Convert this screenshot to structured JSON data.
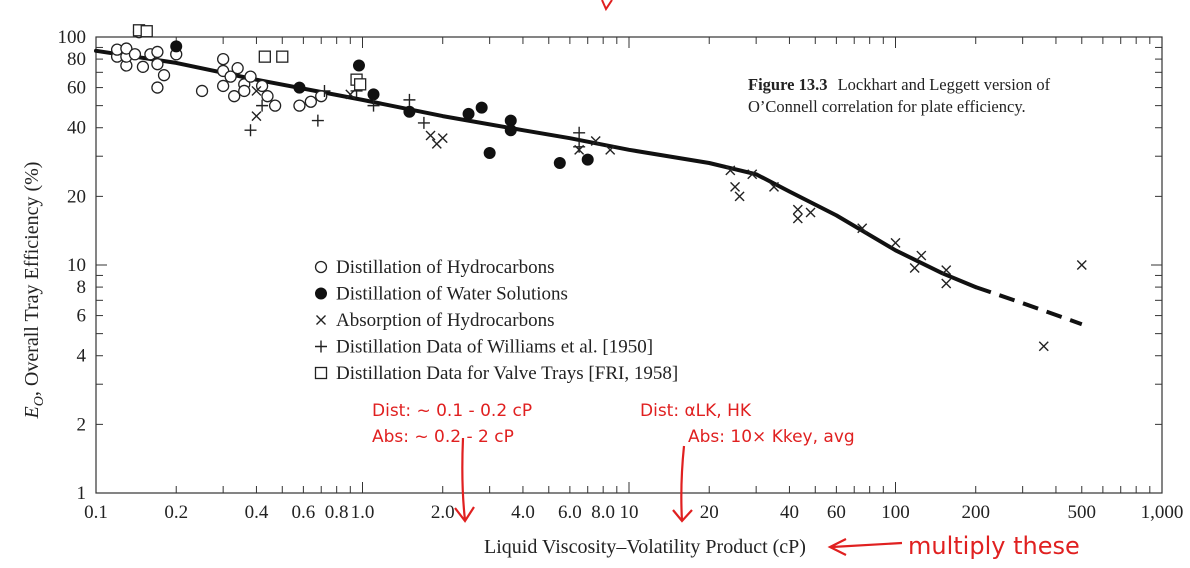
{
  "chart_data": {
    "type": "scatter",
    "title": "",
    "xlabel": "Liquid Viscosity–Volatility Product (cP)",
    "ylabel_prefix": "E",
    "ylabel_sub": "O",
    "ylabel_rest": ", Overall Tray Efficiency (%)",
    "xscale": "log",
    "yscale": "log",
    "xlim": [
      0.1,
      1000
    ],
    "ylim": [
      1,
      100
    ],
    "x_tick_labels": [
      {
        "value": 0.1,
        "label": "0.1"
      },
      {
        "value": 0.2,
        "label": "0.2"
      },
      {
        "value": 0.4,
        "label": "0.4"
      },
      {
        "value": 0.6,
        "label": "0.6"
      },
      {
        "value": 0.8,
        "label": "0.8"
      },
      {
        "value": 1.0,
        "label": "1.0"
      },
      {
        "value": 2.0,
        "label": "2.0"
      },
      {
        "value": 4.0,
        "label": "4.0"
      },
      {
        "value": 6.0,
        "label": "6.0"
      },
      {
        "value": 8.0,
        "label": "8.0"
      },
      {
        "value": 10,
        "label": "10"
      },
      {
        "value": 20,
        "label": "20"
      },
      {
        "value": 40,
        "label": "40"
      },
      {
        "value": 60,
        "label": "60"
      },
      {
        "value": 100,
        "label": "100"
      },
      {
        "value": 200,
        "label": "200"
      },
      {
        "value": 500,
        "label": "500"
      },
      {
        "value": 1000,
        "label": "1,000"
      }
    ],
    "y_tick_labels": [
      {
        "value": 1,
        "label": "1"
      },
      {
        "value": 2,
        "label": "2"
      },
      {
        "value": 4,
        "label": "4"
      },
      {
        "value": 6,
        "label": "6"
      },
      {
        "value": 8,
        "label": "8"
      },
      {
        "value": 10,
        "label": "10"
      },
      {
        "value": 20,
        "label": "20"
      },
      {
        "value": 40,
        "label": "40"
      },
      {
        "value": 60,
        "label": "60"
      },
      {
        "value": 80,
        "label": "80"
      },
      {
        "value": 100,
        "label": "100"
      }
    ],
    "caption_bold": "Figure 13.3",
    "caption_line1": "Lockhart and Leggett version of",
    "caption_line2": "O’Connell correlation for plate efficiency.",
    "legend_placement": "lower-center",
    "legend": [
      {
        "marker": "open-circle",
        "label": "Distillation of Hydrocarbons"
      },
      {
        "marker": "filled-circle",
        "label": "Distillation of Water Solutions"
      },
      {
        "marker": "x",
        "label": "Absorption of Hydrocarbons"
      },
      {
        "marker": "plus",
        "label": "Distillation Data of Williams et al. [1950]"
      },
      {
        "marker": "open-square",
        "label": "Distillation Data for Valve Trays [FRI, 1958]"
      }
    ],
    "correlation_curve": {
      "solid": [
        [
          0.1,
          87
        ],
        [
          0.2,
          77
        ],
        [
          0.4,
          65
        ],
        [
          1.0,
          53
        ],
        [
          2.0,
          45
        ],
        [
          4.0,
          39
        ],
        [
          6.0,
          36
        ],
        [
          10,
          32
        ],
        [
          20,
          28
        ],
        [
          30,
          25
        ],
        [
          40,
          21
        ],
        [
          60,
          16.5
        ],
        [
          100,
          11.6
        ],
        [
          150,
          9.2
        ],
        [
          200,
          8.0
        ]
      ],
      "dashed": [
        [
          200,
          8.0
        ],
        [
          300,
          6.8
        ],
        [
          500,
          5.5
        ]
      ]
    },
    "series": [
      {
        "marker": "open-circle",
        "points": [
          [
            0.12,
            82
          ],
          [
            0.12,
            88
          ],
          [
            0.13,
            75
          ],
          [
            0.13,
            82
          ],
          [
            0.13,
            89
          ],
          [
            0.14,
            84
          ],
          [
            0.145,
            105
          ],
          [
            0.15,
            74
          ],
          [
            0.16,
            84
          ],
          [
            0.17,
            76
          ],
          [
            0.17,
            60
          ],
          [
            0.17,
            86
          ],
          [
            0.18,
            68
          ],
          [
            0.2,
            84
          ],
          [
            0.25,
            58
          ],
          [
            0.3,
            80
          ],
          [
            0.3,
            71
          ],
          [
            0.3,
            61
          ],
          [
            0.32,
            67
          ],
          [
            0.33,
            55
          ],
          [
            0.34,
            73
          ],
          [
            0.36,
            62
          ],
          [
            0.36,
            58
          ],
          [
            0.38,
            67
          ],
          [
            0.42,
            61
          ],
          [
            0.44,
            55
          ],
          [
            0.47,
            50
          ],
          [
            0.58,
            50
          ],
          [
            0.64,
            52
          ],
          [
            0.7,
            55
          ]
        ]
      },
      {
        "marker": "filled-circle",
        "points": [
          [
            0.2,
            91
          ],
          [
            0.58,
            60
          ],
          [
            0.97,
            75
          ],
          [
            1.1,
            56
          ],
          [
            1.5,
            47
          ],
          [
            2.5,
            46
          ],
          [
            2.8,
            49
          ],
          [
            3.0,
            31
          ],
          [
            3.6,
            43
          ],
          [
            3.6,
            39
          ],
          [
            5.5,
            28
          ],
          [
            7.0,
            29
          ]
        ]
      },
      {
        "marker": "x",
        "points": [
          [
            0.4,
            58
          ],
          [
            0.4,
            45
          ],
          [
            0.9,
            56
          ],
          [
            1.8,
            37
          ],
          [
            1.9,
            34
          ],
          [
            2.0,
            36
          ],
          [
            6.5,
            32
          ],
          [
            7.5,
            35
          ],
          [
            8.5,
            32
          ],
          [
            24,
            26
          ],
          [
            25,
            22
          ],
          [
            26,
            20
          ],
          [
            29,
            25
          ],
          [
            35,
            22
          ],
          [
            43,
            17.5
          ],
          [
            43,
            16
          ],
          [
            48,
            17
          ],
          [
            75,
            14.5
          ],
          [
            100,
            12.5
          ],
          [
            118,
            9.7
          ],
          [
            125,
            11
          ],
          [
            155,
            9.5
          ],
          [
            155,
            8.3
          ],
          [
            360,
            4.4
          ],
          [
            500,
            10
          ]
        ]
      },
      {
        "marker": "plus",
        "points": [
          [
            0.38,
            39
          ],
          [
            0.42,
            50
          ],
          [
            0.68,
            43
          ],
          [
            0.72,
            58
          ],
          [
            0.95,
            58
          ],
          [
            1.1,
            50
          ],
          [
            1.5,
            53
          ],
          [
            1.7,
            42
          ],
          [
            6.5,
            38
          ],
          [
            6.5,
            33
          ]
        ]
      },
      {
        "marker": "open-square",
        "points": [
          [
            0.145,
            107
          ],
          [
            0.155,
            106
          ],
          [
            0.43,
            82
          ],
          [
            0.5,
            82
          ],
          [
            0.95,
            65
          ],
          [
            0.98,
            62
          ]
        ]
      }
    ]
  },
  "annotations": {
    "dist_viscosity": "Dist: ~ 0.1 - 0.2 cP",
    "abs_viscosity": "Abs: ~ 0.2 - 2 cP",
    "dist_volatility": "Dist: αLK, HK",
    "abs_volatility": "Abs: 10× Kkey, avg",
    "multiply": "multiply these",
    "color": "#e02020"
  }
}
